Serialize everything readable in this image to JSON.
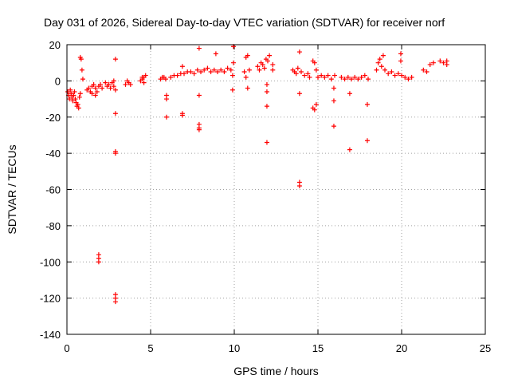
{
  "chart_data": {
    "type": "scatter",
    "title": "Day 031 of 2026, Sidereal Day-to-day VTEC variation (SDTVAR) for receiver norf",
    "xlabel": "GPS time / hours",
    "ylabel": "SDTVAR / TECUs",
    "xlim": [
      0,
      25
    ],
    "ylim": [
      -140,
      20
    ],
    "xticks": [
      0,
      5,
      10,
      15,
      20,
      25
    ],
    "yticks": [
      20,
      0,
      -20,
      -40,
      -60,
      -80,
      -100,
      -120,
      -140
    ],
    "xtick_labels": [
      "0",
      "5",
      "10",
      "15",
      "20",
      "25"
    ],
    "ytick_labels": [
      "20",
      "0",
      "-20",
      "-40",
      "-60",
      "-80",
      "-100",
      "-120",
      "-140"
    ],
    "grid": true,
    "marker": "plus",
    "color": "#ff0000",
    "series": [
      {
        "name": "SDTVAR",
        "points": [
          [
            0.05,
            -6
          ],
          [
            0.1,
            -8
          ],
          [
            0.15,
            -10
          ],
          [
            0.2,
            -5
          ],
          [
            0.25,
            -7
          ],
          [
            0.3,
            -9
          ],
          [
            0.35,
            -11
          ],
          [
            0.4,
            -8
          ],
          [
            0.45,
            -6
          ],
          [
            0.5,
            -10
          ],
          [
            0.55,
            -12
          ],
          [
            0.6,
            -14
          ],
          [
            0.65,
            -13
          ],
          [
            0.7,
            -15
          ],
          [
            0.75,
            -9
          ],
          [
            0.8,
            13
          ],
          [
            0.85,
            12
          ],
          [
            0.9,
            6
          ],
          [
            0.95,
            1
          ],
          [
            0.8,
            -7
          ],
          [
            1.2,
            -5
          ],
          [
            1.3,
            -4
          ],
          [
            1.4,
            -6
          ],
          [
            1.5,
            -3
          ],
          [
            1.6,
            -2
          ],
          [
            1.7,
            -4
          ],
          [
            1.8,
            -6
          ],
          [
            1.9,
            -3
          ],
          [
            1.5,
            -7
          ],
          [
            1.7,
            -8
          ],
          [
            1.9,
            -96
          ],
          [
            1.9,
            -98
          ],
          [
            1.9,
            -100
          ],
          [
            2.0,
            -2
          ],
          [
            2.1,
            -4
          ],
          [
            2.3,
            -1
          ],
          [
            2.4,
            -3
          ],
          [
            2.5,
            -2
          ],
          [
            2.6,
            -4
          ],
          [
            2.7,
            -1
          ],
          [
            2.8,
            -3
          ],
          [
            2.9,
            -5
          ],
          [
            2.9,
            12
          ],
          [
            2.9,
            -18
          ],
          [
            2.9,
            -39
          ],
          [
            2.9,
            -40
          ],
          [
            2.9,
            -118
          ],
          [
            2.9,
            -120
          ],
          [
            2.9,
            -122
          ],
          [
            2.8,
            0
          ],
          [
            3.5,
            -2
          ],
          [
            3.6,
            0
          ],
          [
            3.7,
            -1
          ],
          [
            3.8,
            -2
          ],
          [
            4.4,
            0
          ],
          [
            4.5,
            1
          ],
          [
            4.6,
            2
          ],
          [
            4.7,
            3
          ],
          [
            4.6,
            -1
          ],
          [
            4.5,
            2
          ],
          [
            5.6,
            1
          ],
          [
            5.7,
            2
          ],
          [
            5.8,
            2
          ],
          [
            5.9,
            1
          ],
          [
            5.95,
            -8
          ],
          [
            5.95,
            -10
          ],
          [
            5.95,
            -20
          ],
          [
            6.2,
            2
          ],
          [
            6.4,
            3
          ],
          [
            6.6,
            3
          ],
          [
            6.8,
            4
          ],
          [
            6.9,
            -18
          ],
          [
            6.9,
            -19
          ],
          [
            6.9,
            8
          ],
          [
            7.0,
            4
          ],
          [
            7.2,
            5
          ],
          [
            7.4,
            5
          ],
          [
            7.6,
            4
          ],
          [
            7.8,
            6
          ],
          [
            7.9,
            -8
          ],
          [
            7.9,
            -24
          ],
          [
            7.9,
            -26
          ],
          [
            7.9,
            -27
          ],
          [
            7.9,
            18
          ],
          [
            8.0,
            5
          ],
          [
            8.2,
            6
          ],
          [
            8.4,
            7
          ],
          [
            8.6,
            5
          ],
          [
            8.8,
            6
          ],
          [
            8.9,
            15
          ],
          [
            9.0,
            5
          ],
          [
            9.2,
            6
          ],
          [
            9.4,
            5
          ],
          [
            9.6,
            7
          ],
          [
            9.8,
            6
          ],
          [
            9.9,
            -5
          ],
          [
            9.95,
            19
          ],
          [
            9.95,
            10
          ],
          [
            9.9,
            3
          ],
          [
            10.6,
            5
          ],
          [
            10.7,
            13
          ],
          [
            10.8,
            14
          ],
          [
            10.8,
            -4
          ],
          [
            10.9,
            6
          ],
          [
            10.7,
            2
          ],
          [
            11.4,
            8
          ],
          [
            11.5,
            6
          ],
          [
            11.6,
            10
          ],
          [
            11.7,
            9
          ],
          [
            11.8,
            7
          ],
          [
            11.9,
            12
          ],
          [
            11.95,
            -2
          ],
          [
            11.95,
            -6
          ],
          [
            11.95,
            -14
          ],
          [
            11.95,
            -34
          ],
          [
            12.0,
            11
          ],
          [
            12.1,
            14
          ],
          [
            12.3,
            9
          ],
          [
            12.3,
            6
          ],
          [
            13.5,
            6
          ],
          [
            13.6,
            5
          ],
          [
            13.7,
            4
          ],
          [
            13.8,
            7
          ],
          [
            13.9,
            -7
          ],
          [
            13.9,
            -56
          ],
          [
            13.9,
            -58
          ],
          [
            13.9,
            16
          ],
          [
            14.0,
            5
          ],
          [
            14.2,
            3
          ],
          [
            14.4,
            4
          ],
          [
            14.5,
            2
          ],
          [
            14.7,
            11
          ],
          [
            14.8,
            10
          ],
          [
            14.7,
            -15
          ],
          [
            14.8,
            -16
          ],
          [
            14.9,
            -13
          ],
          [
            14.9,
            6
          ],
          [
            15.0,
            2
          ],
          [
            15.2,
            3
          ],
          [
            15.4,
            2
          ],
          [
            15.6,
            3
          ],
          [
            15.8,
            1
          ],
          [
            15.95,
            -4
          ],
          [
            15.95,
            -11
          ],
          [
            15.95,
            -25
          ],
          [
            16.0,
            3
          ],
          [
            16.4,
            2
          ],
          [
            16.6,
            1
          ],
          [
            16.8,
            2
          ],
          [
            16.9,
            -7
          ],
          [
            16.9,
            -38
          ],
          [
            17.0,
            1
          ],
          [
            17.2,
            2
          ],
          [
            17.4,
            1
          ],
          [
            17.6,
            2
          ],
          [
            17.8,
            3
          ],
          [
            17.95,
            -13
          ],
          [
            17.95,
            -33
          ],
          [
            18.0,
            1
          ],
          [
            18.5,
            6
          ],
          [
            18.6,
            10
          ],
          [
            18.7,
            12
          ],
          [
            18.8,
            8
          ],
          [
            18.9,
            14
          ],
          [
            19.0,
            6
          ],
          [
            19.2,
            4
          ],
          [
            19.4,
            5
          ],
          [
            19.6,
            3
          ],
          [
            19.8,
            4
          ],
          [
            19.95,
            15
          ],
          [
            19.95,
            11
          ],
          [
            20.0,
            3
          ],
          [
            20.2,
            2
          ],
          [
            20.4,
            1
          ],
          [
            20.6,
            2
          ],
          [
            21.3,
            6
          ],
          [
            21.5,
            5
          ],
          [
            21.7,
            9
          ],
          [
            21.9,
            10
          ],
          [
            22.3,
            11
          ],
          [
            22.5,
            10
          ],
          [
            22.7,
            9
          ],
          [
            22.7,
            11
          ]
        ]
      }
    ]
  }
}
